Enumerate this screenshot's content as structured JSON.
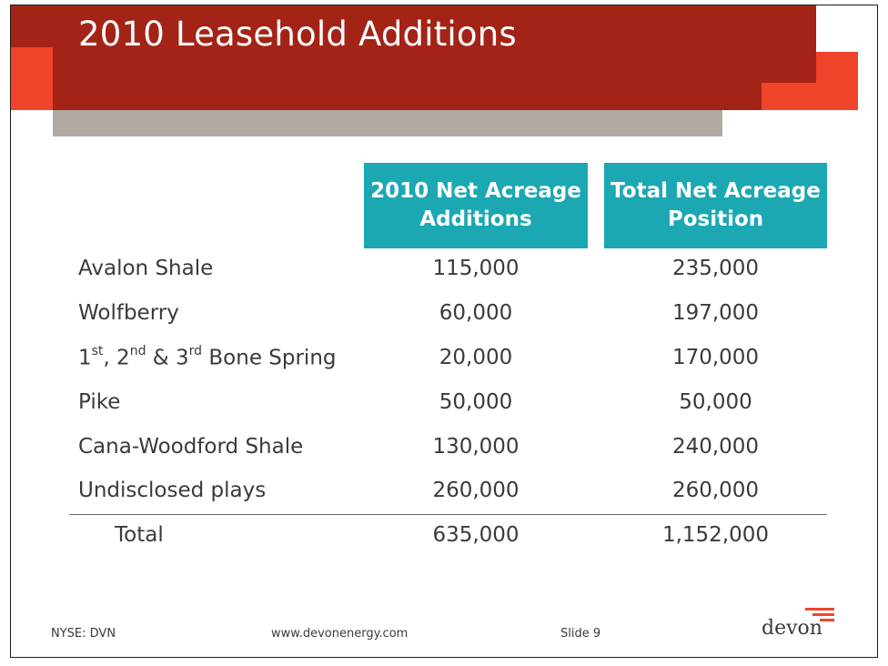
{
  "slide": {
    "title": "2010 Leasehold Additions",
    "colors": {
      "dark_red": "#a32416",
      "orange": "#f0442a",
      "grey": "#b0aaa2",
      "teal": "#1ba8b2"
    }
  },
  "table": {
    "headers": [
      "2010 Net Acreage Additions",
      "Total Net Acreage Position"
    ],
    "rows": [
      {
        "label": "Avalon Shale",
        "additions": "115,000",
        "position": "235,000"
      },
      {
        "label": "Wolfberry",
        "additions": "60,000",
        "position": "197,000"
      },
      {
        "label_parts": [
          "1",
          "st",
          ", 2",
          "nd",
          " & 3",
          "rd",
          " Bone Spring"
        ],
        "additions": "20,000",
        "position": "170,000"
      },
      {
        "label": "Pike",
        "additions": "50,000",
        "position": "50,000"
      },
      {
        "label": "Cana-Woodford Shale",
        "additions": "130,000",
        "position": "240,000"
      },
      {
        "label": "Undisclosed plays",
        "additions": "260,000",
        "position": "260,000"
      }
    ],
    "total": {
      "label": "Total",
      "additions": "635,000",
      "position": "1,152,000"
    }
  },
  "footer": {
    "ticker": "NYSE: DVN",
    "website": "www.devonenergy.com",
    "slide_label": "Slide 9",
    "logo_text": "devon"
  }
}
